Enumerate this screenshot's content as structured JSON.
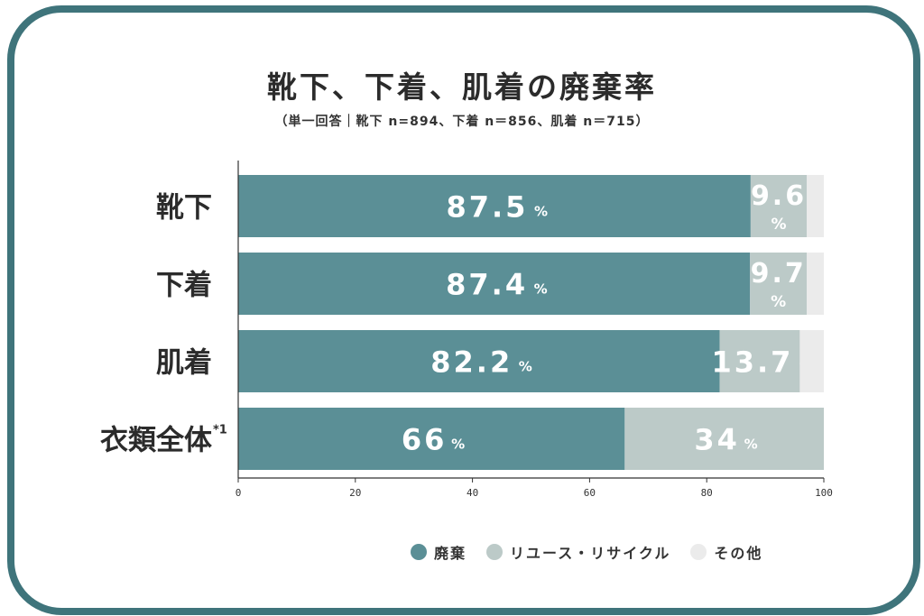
{
  "title": "靴下、下着、肌着の廃棄率",
  "subtitle": "（単一回答｜靴下 n=894、下着 n＝856、肌着 n＝715）",
  "colors": {
    "frame": "#3f747b",
    "discard": "#5b8f96",
    "reuse": "#bccac8",
    "other": "#ebebeb"
  },
  "legend": [
    "廃棄",
    "リユース・リサイクル",
    "その他"
  ],
  "chart_data": {
    "type": "bar",
    "orientation": "horizontal",
    "stacked": true,
    "categories": [
      "靴下",
      "下着",
      "肌着",
      "衣類全体"
    ],
    "category_footnote": {
      "衣類全体": "*1"
    },
    "series": [
      {
        "name": "廃棄",
        "values": [
          87.5,
          87.4,
          82.2,
          66
        ],
        "labels": [
          "87.5",
          "87.4",
          "82.2",
          "66"
        ]
      },
      {
        "name": "リユース・リサイクル",
        "values": [
          9.6,
          9.7,
          13.7,
          34
        ],
        "labels": [
          "9.6",
          "9.7",
          "13.7",
          "34"
        ]
      },
      {
        "name": "その他",
        "values": [
          2.9,
          2.9,
          4.1,
          0
        ],
        "labels": [
          "",
          "",
          "",
          ""
        ]
      }
    ],
    "unit": "%",
    "xlim": [
      0,
      100
    ],
    "xticks": [
      "0",
      "20",
      "40",
      "60",
      "80",
      "100"
    ],
    "legend_position": "bottom-right",
    "grid": false
  }
}
